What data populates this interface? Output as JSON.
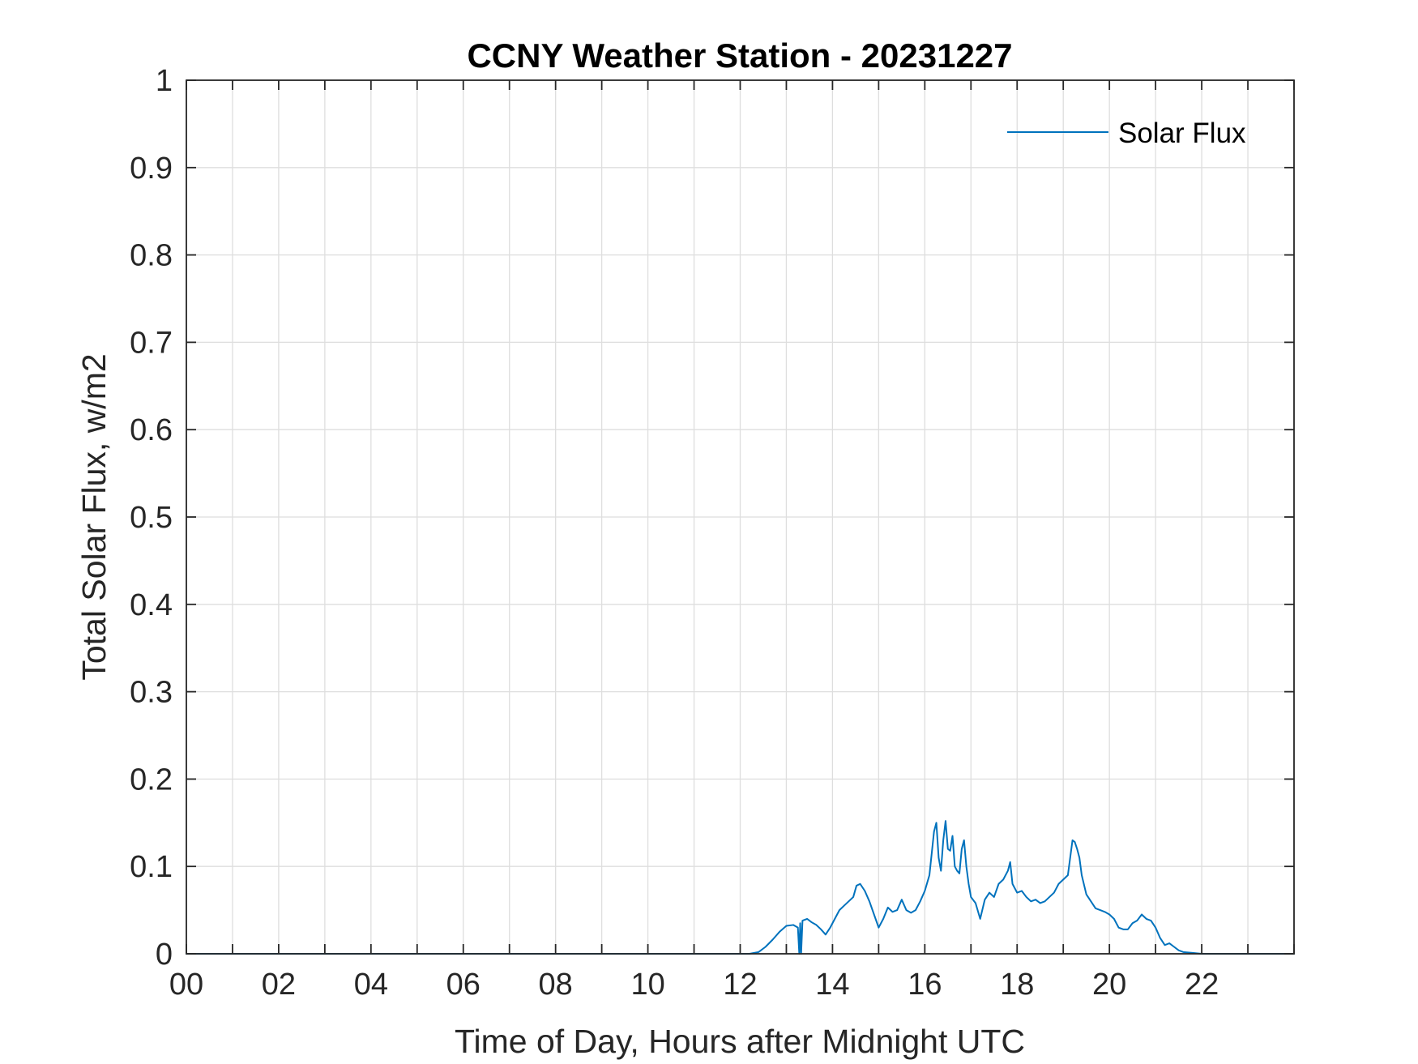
{
  "chart_data": {
    "type": "line",
    "title": "CCNY Weather Station - 20231227",
    "xlabel": "Time of Day, Hours after Midnight UTC",
    "ylabel": "Total Solar Flux, w/m2",
    "xlim": [
      0,
      24
    ],
    "ylim": [
      0,
      1
    ],
    "x_ticks": [
      0,
      2,
      4,
      6,
      8,
      10,
      12,
      14,
      16,
      18,
      20,
      22
    ],
    "x_tick_labels": [
      "00",
      "02",
      "04",
      "06",
      "08",
      "10",
      "12",
      "14",
      "16",
      "18",
      "20",
      "22"
    ],
    "x_grid": [
      0,
      1,
      2,
      3,
      4,
      5,
      6,
      7,
      8,
      9,
      10,
      11,
      12,
      13,
      14,
      15,
      16,
      17,
      18,
      19,
      20,
      21,
      22,
      23,
      24
    ],
    "y_ticks": [
      0,
      0.1,
      0.2,
      0.3,
      0.4,
      0.5,
      0.6,
      0.7,
      0.8,
      0.9,
      1
    ],
    "y_tick_labels": [
      "0",
      "0.1",
      "0.2",
      "0.3",
      "0.4",
      "0.5",
      "0.6",
      "0.7",
      "0.8",
      "0.9",
      "1"
    ],
    "grid": true,
    "legend_position": "top-right",
    "series": [
      {
        "name": "Solar Flux",
        "color": "#0072BD",
        "x": [
          0,
          12.2,
          12.4,
          12.55,
          12.7,
          12.85,
          13.0,
          13.15,
          13.25,
          13.28,
          13.3,
          13.32,
          13.35,
          13.45,
          13.55,
          13.65,
          13.75,
          13.85,
          13.95,
          14.05,
          14.15,
          14.25,
          14.35,
          14.45,
          14.52,
          14.6,
          14.7,
          14.8,
          14.9,
          15.0,
          15.1,
          15.2,
          15.3,
          15.4,
          15.5,
          15.6,
          15.7,
          15.8,
          15.9,
          16.0,
          16.1,
          16.2,
          16.25,
          16.3,
          16.35,
          16.4,
          16.45,
          16.5,
          16.55,
          16.6,
          16.65,
          16.7,
          16.75,
          16.8,
          16.85,
          16.9,
          16.95,
          17.0,
          17.1,
          17.2,
          17.3,
          17.4,
          17.5,
          17.6,
          17.7,
          17.8,
          17.85,
          17.9,
          18.0,
          18.1,
          18.2,
          18.3,
          18.4,
          18.5,
          18.6,
          18.7,
          18.8,
          18.9,
          19.0,
          19.1,
          19.2,
          19.25,
          19.3,
          19.35,
          19.4,
          19.5,
          19.6,
          19.7,
          19.8,
          19.9,
          20.0,
          20.1,
          20.2,
          20.3,
          20.4,
          20.5,
          20.6,
          20.7,
          20.8,
          20.9,
          21.0,
          21.1,
          21.2,
          21.3,
          21.4,
          21.5,
          21.6,
          21.8,
          22.0,
          24.0
        ],
        "y": [
          0,
          0,
          0.002,
          0.008,
          0.016,
          0.025,
          0.032,
          0.033,
          0.03,
          0.0,
          0.035,
          0.0,
          0.038,
          0.04,
          0.036,
          0.033,
          0.028,
          0.022,
          0.03,
          0.04,
          0.05,
          0.055,
          0.06,
          0.065,
          0.078,
          0.08,
          0.072,
          0.06,
          0.045,
          0.03,
          0.04,
          0.053,
          0.048,
          0.05,
          0.062,
          0.05,
          0.047,
          0.05,
          0.06,
          0.072,
          0.09,
          0.14,
          0.15,
          0.11,
          0.095,
          0.13,
          0.152,
          0.12,
          0.118,
          0.135,
          0.1,
          0.095,
          0.092,
          0.12,
          0.13,
          0.1,
          0.08,
          0.065,
          0.058,
          0.04,
          0.062,
          0.07,
          0.065,
          0.08,
          0.085,
          0.095,
          0.105,
          0.08,
          0.07,
          0.072,
          0.065,
          0.06,
          0.062,
          0.058,
          0.06,
          0.065,
          0.07,
          0.08,
          0.085,
          0.09,
          0.13,
          0.128,
          0.12,
          0.11,
          0.09,
          0.068,
          0.06,
          0.052,
          0.05,
          0.048,
          0.045,
          0.04,
          0.03,
          0.028,
          0.028,
          0.035,
          0.038,
          0.045,
          0.04,
          0.038,
          0.03,
          0.018,
          0.01,
          0.012,
          0.008,
          0.004,
          0.002,
          0.001,
          0.0,
          0.0
        ]
      }
    ]
  }
}
